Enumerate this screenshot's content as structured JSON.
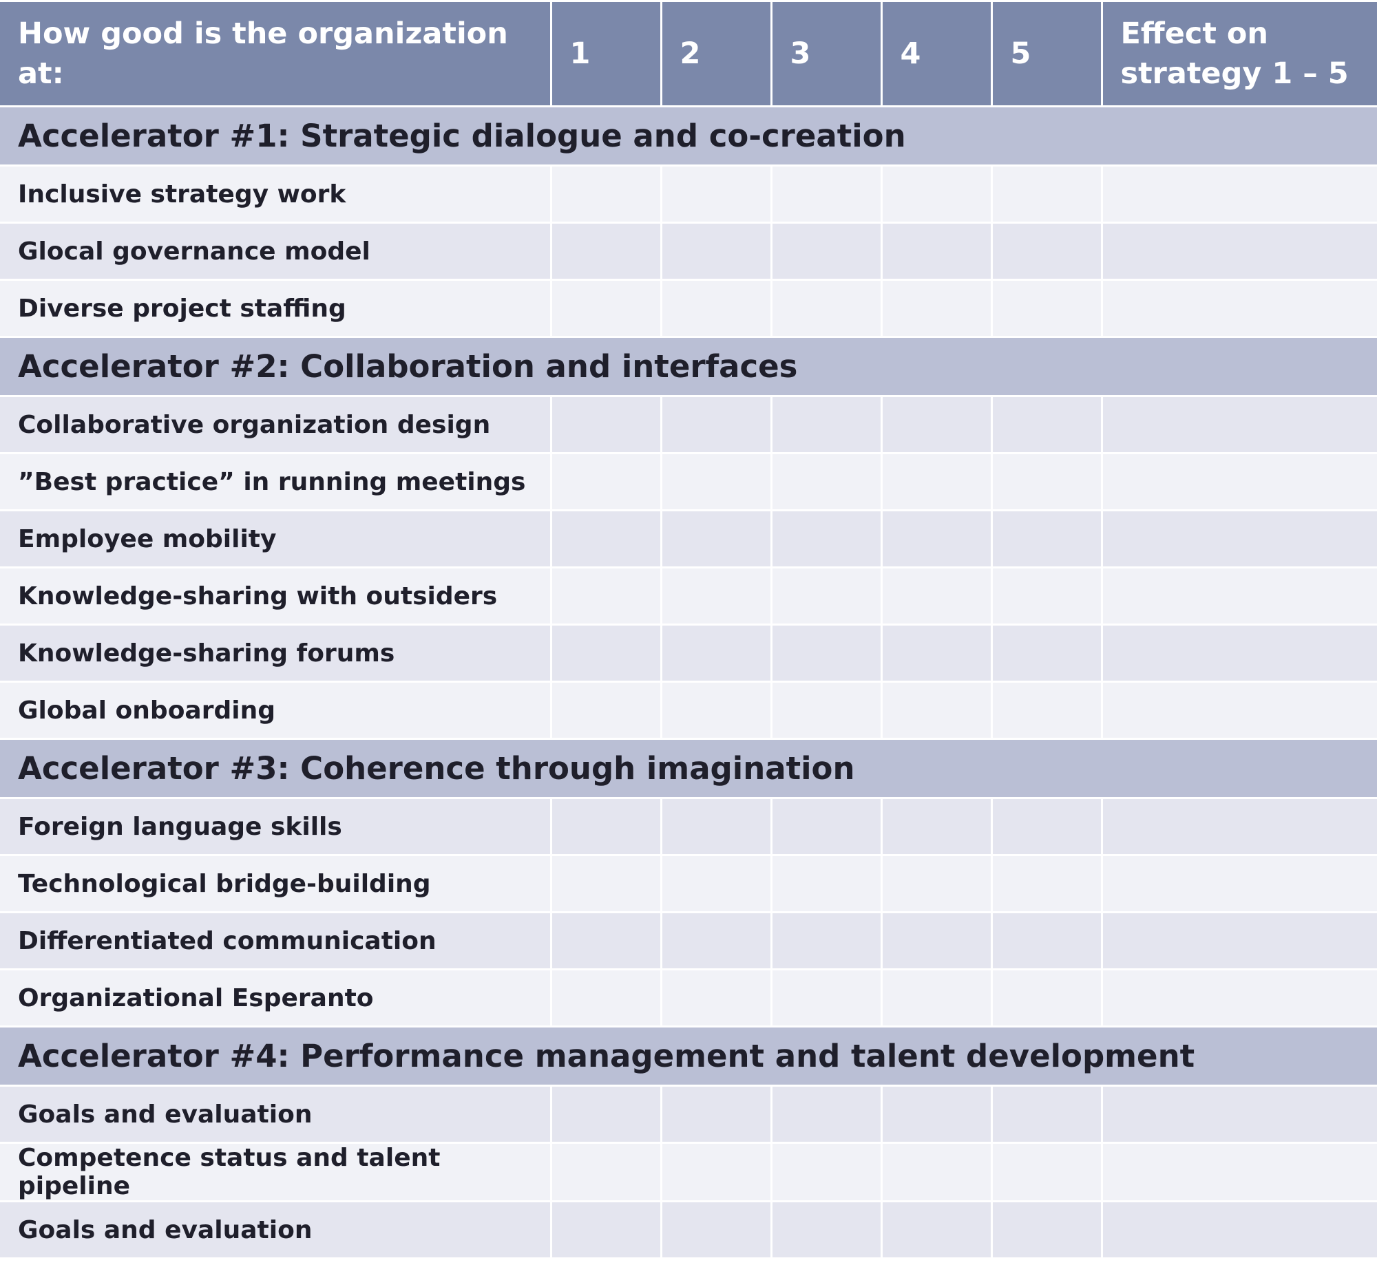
{
  "table": {
    "header": {
      "question": "How good is the organization at:",
      "scores": [
        "1",
        "2",
        "3",
        "4",
        "5"
      ],
      "effect": "Effect on strategy 1 – 5"
    },
    "sections": [
      {
        "title": "Accelerator #1: Strategic dialogue and co-creation",
        "items": [
          "Inclusive strategy work",
          "Glocal governance model",
          "Diverse project staffing"
        ]
      },
      {
        "title": "Accelerator #2: Collaboration and interfaces",
        "items": [
          "Collaborative organization design",
          "”Best practice” in running meetings",
          "Employee mobility",
          "Knowledge-sharing with outsiders",
          "Knowledge-sharing forums",
          "Global onboarding"
        ]
      },
      {
        "title": "Accelerator #3: Coherence through imagination",
        "items": [
          "Foreign language skills",
          "Technological bridge-building",
          "Differentiated communication",
          "Organizational Esperanto"
        ]
      },
      {
        "title": "Accelerator #4: Performance management and talent development",
        "items": [
          "Goals and evaluation",
          "Competence status and talent pipeline",
          "Goals and evaluation"
        ]
      }
    ]
  }
}
